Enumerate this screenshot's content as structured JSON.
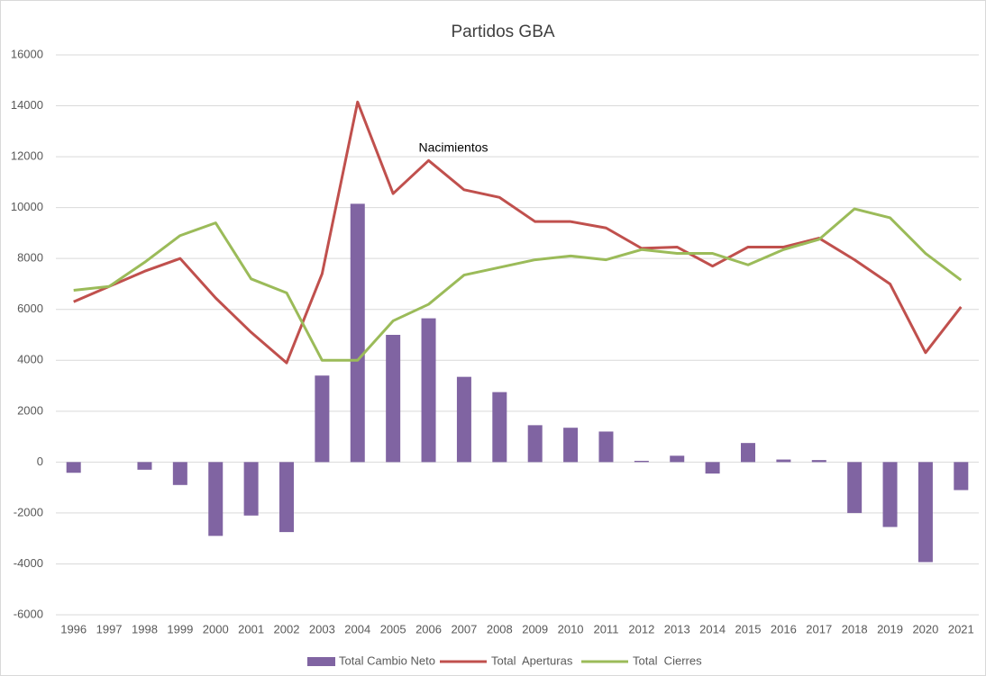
{
  "chart_data": {
    "type": "bar_line",
    "title": "Partidos GBA",
    "annotation": "Nacimientos",
    "categories": [
      "1996",
      "1997",
      "1998",
      "1999",
      "2000",
      "2001",
      "2002",
      "2003",
      "2004",
      "2005",
      "2006",
      "2007",
      "2008",
      "2009",
      "2010",
      "2011",
      "2012",
      "2013",
      "2014",
      "2015",
      "2016",
      "2017",
      "2018",
      "2019",
      "2020",
      "2021"
    ],
    "series": [
      {
        "name": "Total Cambio Neto",
        "type": "bar",
        "color": "#8064a2",
        "values": [
          -420,
          0,
          -300,
          -900,
          -2900,
          -2100,
          -2750,
          3400,
          10150,
          5000,
          5650,
          3350,
          2750,
          1450,
          1350,
          1200,
          50,
          250,
          -450,
          750,
          100,
          80,
          -2000,
          -2550,
          -3930,
          -1100
        ]
      },
      {
        "name": "Total  Aperturas",
        "type": "line",
        "color": "#c0504d",
        "values": [
          6300,
          6900,
          7500,
          8000,
          6450,
          5100,
          3900,
          7400,
          14150,
          10550,
          11850,
          10700,
          10400,
          9450,
          9450,
          9200,
          8400,
          8450,
          7700,
          8450,
          8450,
          8800,
          7950,
          7000,
          4300,
          6100
        ]
      },
      {
        "name": "Total  Cierres",
        "type": "line",
        "color": "#9bbb59",
        "values": [
          6750,
          6900,
          7850,
          8900,
          9400,
          7200,
          6650,
          4000,
          4000,
          5550,
          6200,
          7350,
          7650,
          7950,
          8100,
          7950,
          8350,
          8200,
          8200,
          7750,
          8350,
          8750,
          9950,
          9600,
          8200,
          7150
        ]
      }
    ],
    "ylim": [
      -6000,
      16000
    ],
    "yticks": [
      -6000,
      -4000,
      -2000,
      0,
      2000,
      4000,
      6000,
      8000,
      10000,
      12000,
      14000,
      16000
    ],
    "grid": true,
    "legend": "bottom"
  }
}
